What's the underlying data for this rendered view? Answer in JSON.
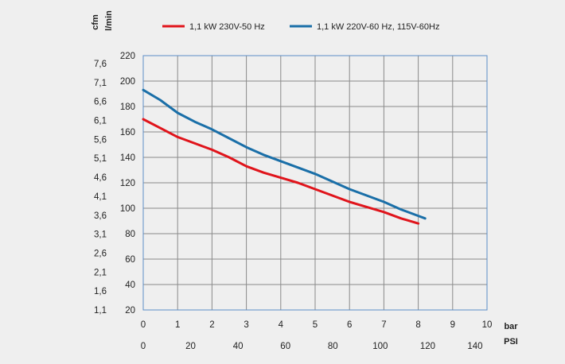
{
  "chart_data": {
    "type": "line",
    "x_axis_primary": {
      "label": "bar",
      "ticks": [
        "0",
        "1",
        "2",
        "3",
        "4",
        "5",
        "6",
        "7",
        "8",
        "9",
        "10"
      ],
      "range": [
        0,
        10
      ]
    },
    "x_axis_secondary": {
      "label": "PSI",
      "ticks": [
        "0",
        "20",
        "40",
        "60",
        "80",
        "100",
        "120",
        "140"
      ],
      "range": [
        0,
        145.04
      ]
    },
    "y_axis_primary": {
      "label": "l/min",
      "ticks": [
        "20",
        "40",
        "60",
        "80",
        "100",
        "120",
        "140",
        "160",
        "180",
        "200",
        "220"
      ],
      "range": [
        20,
        220
      ]
    },
    "y_axis_secondary": {
      "label": "cfm",
      "ticks": [
        "1,1",
        "1,6",
        "2,1",
        "2,6",
        "3,1",
        "3,6",
        "4,1",
        "4,6",
        "5,1",
        "5,6",
        "6,1",
        "6,6",
        "7,1",
        "7,6"
      ]
    },
    "grid": true,
    "legend_position": "top",
    "series": [
      {
        "name": "1,1 kW 230V-50 Hz",
        "color": "#e0141b",
        "x": [
          0,
          0.5,
          1,
          1.5,
          2,
          2.5,
          3,
          3.5,
          4,
          4.5,
          5,
          5.5,
          6,
          6.5,
          7,
          7.5,
          8
        ],
        "y": [
          170,
          163,
          156,
          151,
          146,
          140,
          133,
          128,
          124,
          120,
          115,
          110,
          105,
          101,
          97,
          92,
          88
        ]
      },
      {
        "name": "1,1 kW 220V-60 Hz, 115V-60Hz",
        "color": "#1a6fa8",
        "x": [
          0,
          0.5,
          1,
          1.5,
          2,
          2.5,
          3,
          3.5,
          4,
          4.5,
          5,
          5.5,
          6,
          6.5,
          7,
          7.5,
          8,
          8.2
        ],
        "y": [
          193,
          185,
          175,
          168,
          162,
          155,
          148,
          142,
          137,
          132,
          127,
          121,
          115,
          110,
          105,
          99,
          94,
          92
        ]
      }
    ]
  }
}
